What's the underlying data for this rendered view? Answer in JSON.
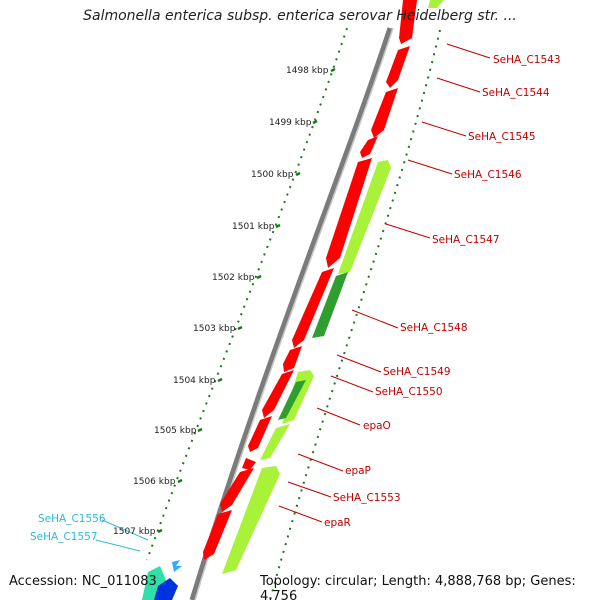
{
  "header": {
    "title": "Salmonella enterica subsp. enterica serovar Heidelberg str. ..."
  },
  "ticks": [
    {
      "label": "1498 kbp"
    },
    {
      "label": "1499 kbp"
    },
    {
      "label": "1500 kbp"
    },
    {
      "label": "1501 kbp"
    },
    {
      "label": "1502 kbp"
    },
    {
      "label": "1503 kbp"
    },
    {
      "label": "1504 kbp"
    },
    {
      "label": "1505 kbp"
    },
    {
      "label": "1506 kbp"
    },
    {
      "label": "1507 kbp"
    }
  ],
  "genes_right": [
    {
      "label": "SeHA_C1543"
    },
    {
      "label": "SeHA_C1544"
    },
    {
      "label": "SeHA_C1545"
    },
    {
      "label": "SeHA_C1546"
    },
    {
      "label": "SeHA_C1547"
    },
    {
      "label": "SeHA_C1548"
    },
    {
      "label": "SeHA_C1549"
    },
    {
      "label": "SeHA_C1550"
    },
    {
      "label": "epaO"
    },
    {
      "label": "epaP"
    },
    {
      "label": "SeHA_C1553"
    },
    {
      "label": "epaR"
    }
  ],
  "genes_left": [
    {
      "label": "SeHA_C1556"
    },
    {
      "label": "SeHA_C1557"
    }
  ],
  "colors": {
    "forward_gene": "#ff0000",
    "reverse_gene": "#a8f23a",
    "reverse_gene_dark": "#2f9e2f",
    "right_label": "#c00000",
    "left_label": "#2fb8d8",
    "backbone": "#888888",
    "tick": "#1a7a1a"
  },
  "footer": {
    "accession": "Accession: NC_011083",
    "topology": "Topology: circular; Length: 4,888,768 bp; Genes: 4,756"
  }
}
